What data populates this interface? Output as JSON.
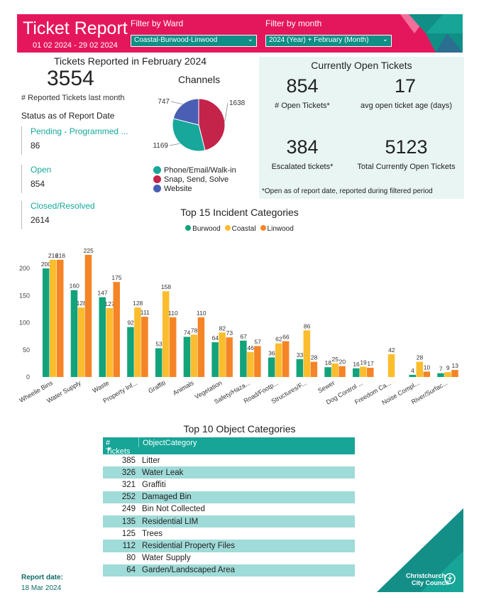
{
  "header": {
    "title": "Ticket Report",
    "dates": "01 02 2024 - 29 02 2024",
    "ward_label": "Filter by Ward",
    "ward_value": "Coastal-Burwood-Linwood",
    "month_label": "Filter by month",
    "month_value": "2024 (Year) + February (Month)"
  },
  "summary": {
    "heading": "Tickets Reported in February 2024",
    "reported": "3554",
    "reported_label": "# Reported Tickets last month",
    "status_heading": "Status as of Report Date",
    "statuses": [
      {
        "label": "Pending - Programmed ...",
        "value": "86"
      },
      {
        "label": "Open",
        "value": "854"
      },
      {
        "label": "Closed/Resolved",
        "value": "2614"
      }
    ]
  },
  "channels": {
    "title": "Channels",
    "slices": [
      {
        "name": "Phone/Email/Walk-in",
        "value": 1169,
        "color": "#17a79b"
      },
      {
        "name": "Snap, Send, Solve",
        "value": 1638,
        "color": "#c4234a"
      },
      {
        "name": "Website",
        "value": 747,
        "color": "#4a5fb4"
      }
    ]
  },
  "open_tickets": {
    "heading": "Currently Open Tickets",
    "kpis": [
      {
        "value": "854",
        "label": "# Open Tickets*"
      },
      {
        "value": "17",
        "label": "avg open ticket age (days)"
      },
      {
        "value": "384",
        "label": "Escalated tickets*"
      },
      {
        "value": "5123",
        "label": "Total Currently Open Tickets"
      }
    ],
    "note": "*Open as of report date, reported during filtered period"
  },
  "chart_data": {
    "type": "bar",
    "title": "Top 15 Incident Categories",
    "categories": [
      "Wheelie Bins",
      "Water Supply",
      "Waste",
      "Property Inf...",
      "Graffiti",
      "Animals",
      "Vegetation",
      "Safety/Haza...",
      "Road/Footp...",
      "Structures/F...",
      "Sewer",
      "Dog Control ...",
      "Freedom Ca...",
      "Noise Compl...",
      "River/Surfac..."
    ],
    "series": [
      {
        "name": "Burwood",
        "color": "#12a37a",
        "values": [
          200,
          160,
          147,
          92,
          53,
          74,
          64,
          67,
          36,
          33,
          18,
          16,
          null,
          4,
          7
        ]
      },
      {
        "name": "Coastal",
        "color": "#fbbd2d",
        "values": [
          216,
          128,
          127,
          128,
          158,
          78,
          82,
          46,
          62,
          86,
          25,
          19,
          42,
          28,
          9
        ]
      },
      {
        "name": "Linwood",
        "color": "#f58426",
        "values": [
          216,
          225,
          175,
          111,
          110,
          110,
          73,
          57,
          66,
          28,
          20,
          17,
          null,
          10,
          13
        ]
      }
    ],
    "ylim": [
      0,
      230
    ],
    "yticks": [
      0,
      50,
      100,
      150,
      200
    ],
    "legend": "top-center",
    "grid": false
  },
  "objects": {
    "title": "Top 10 Object Categories",
    "col_num": "# Tickets",
    "col_cat": "ObjectCategory",
    "rows": [
      {
        "n": "385",
        "c": "Litter"
      },
      {
        "n": "326",
        "c": "Water Leak"
      },
      {
        "n": "321",
        "c": "Graffiti"
      },
      {
        "n": "252",
        "c": "Damaged Bin"
      },
      {
        "n": "249",
        "c": "Bin Not Collected"
      },
      {
        "n": "135",
        "c": "Residential LIM"
      },
      {
        "n": "125",
        "c": "Trees"
      },
      {
        "n": "112",
        "c": "Residential Property Files"
      },
      {
        "n": "80",
        "c": "Water Supply"
      },
      {
        "n": "64",
        "c": "Garden/Landscaped Area"
      }
    ]
  },
  "footer": {
    "report_label": "Report date:",
    "report_date": "18 Mar 2024",
    "logo_line1": "Christchurch",
    "logo_line2": "City Council"
  }
}
